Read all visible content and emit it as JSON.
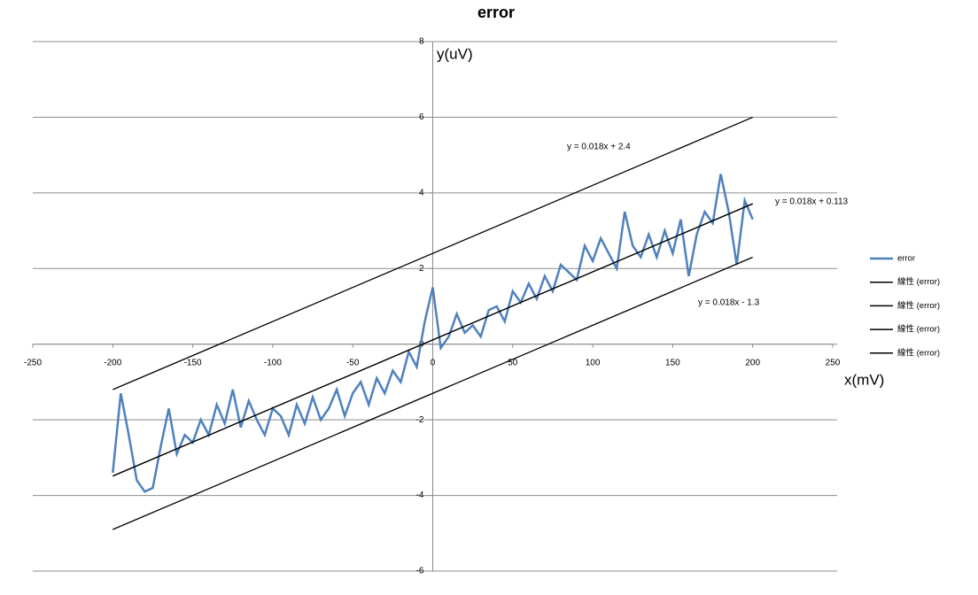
{
  "chart_data": {
    "type": "line",
    "title": "error",
    "x_label": "x(mV)",
    "y_label": "y(uV)",
    "x": [
      -200,
      -195,
      -190,
      -185,
      -180,
      -175,
      -170,
      -165,
      -160,
      -155,
      -150,
      -145,
      -140,
      -135,
      -130,
      -125,
      -120,
      -115,
      -110,
      -105,
      -100,
      -95,
      -90,
      -85,
      -80,
      -75,
      -70,
      -65,
      -60,
      -55,
      -50,
      -45,
      -40,
      -35,
      -30,
      -25,
      -20,
      -15,
      -10,
      -5,
      0,
      5,
      10,
      15,
      20,
      25,
      30,
      35,
      40,
      45,
      50,
      55,
      60,
      65,
      70,
      75,
      80,
      85,
      90,
      95,
      100,
      105,
      110,
      115,
      120,
      125,
      130,
      135,
      140,
      145,
      150,
      155,
      160,
      165,
      170,
      175,
      180,
      185,
      190,
      195,
      200
    ],
    "series": [
      {
        "name": "error",
        "color": "#4f81bd",
        "values": [
          -3.4,
          -1.3,
          -2.4,
          -3.6,
          -3.9,
          -3.8,
          -2.7,
          -1.7,
          -2.9,
          -2.4,
          -2.6,
          -2.0,
          -2.4,
          -1.6,
          -2.1,
          -1.2,
          -2.2,
          -1.5,
          -2.0,
          -2.4,
          -1.7,
          -1.9,
          -2.4,
          -1.6,
          -2.1,
          -1.4,
          -2.0,
          -1.7,
          -1.2,
          -1.9,
          -1.3,
          -1.0,
          -1.6,
          -0.9,
          -1.3,
          -0.7,
          -1.0,
          -0.2,
          -0.6,
          0.6,
          1.5,
          -0.1,
          0.2,
          0.8,
          0.3,
          0.5,
          0.2,
          0.9,
          1.0,
          0.6,
          1.4,
          1.1,
          1.6,
          1.2,
          1.8,
          1.4,
          2.1,
          1.9,
          1.7,
          2.6,
          2.2,
          2.8,
          2.4,
          2.0,
          3.5,
          2.6,
          2.3,
          2.9,
          2.3,
          3.0,
          2.4,
          3.3,
          1.8,
          2.9,
          3.5,
          3.2,
          4.5,
          3.5,
          2.1,
          3.8,
          3.3
        ]
      },
      {
        "name": "線性 (error)",
        "color": "#000000",
        "x": [
          -200,
          200
        ],
        "values": [
          -1.2,
          6.0
        ]
      },
      {
        "name": "線性 (error)",
        "color": "#000000",
        "x": [
          -200,
          200
        ],
        "values": [
          -3.487,
          3.713
        ]
      },
      {
        "name": "線性 (error)",
        "color": "#000000",
        "x": [
          -200,
          200
        ],
        "values": [
          -4.9,
          2.3
        ]
      },
      {
        "name": "線性 (error)",
        "color": "#000000",
        "x": [
          -200,
          200
        ],
        "values": [
          -3.487,
          3.713
        ]
      }
    ],
    "annotations": [
      "y = 0.018x + 2.4",
      "y = 0.018x + 0.113",
      "y = 0.018x - 1.3"
    ],
    "xlim": [
      -250,
      250
    ],
    "xticks": [
      -250,
      -200,
      -150,
      -100,
      -50,
      0,
      50,
      100,
      150,
      200,
      250
    ],
    "ylim": [
      -6,
      8
    ],
    "yticks": [
      -6,
      -4,
      -2,
      0,
      2,
      4,
      6,
      8
    ],
    "grid": true,
    "legend": "right"
  }
}
